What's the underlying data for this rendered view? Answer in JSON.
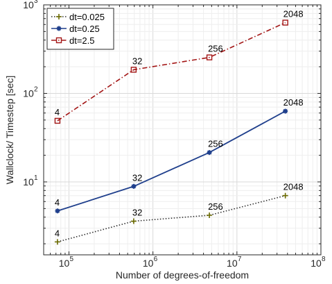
{
  "chart_data": {
    "type": "line",
    "title": "",
    "xlabel": "Number of degrees-of-freedom",
    "ylabel": "Wallclock/ Timestep [sec]",
    "xscale": "log",
    "yscale": "log",
    "xlim": [
      50000,
      100000000
    ],
    "ylim": [
      1.5,
      1000
    ],
    "grid": true,
    "legend_position": "top-left",
    "x_ticks": [
      {
        "value": 100000,
        "base": "10",
        "exp": "5"
      },
      {
        "value": 1000000,
        "base": "10",
        "exp": "6"
      },
      {
        "value": 10000000,
        "base": "10",
        "exp": "7"
      },
      {
        "value": 100000000,
        "base": "10",
        "exp": "8"
      }
    ],
    "y_ticks": [
      {
        "value": 10,
        "base": "10",
        "exp": "1"
      },
      {
        "value": 100,
        "base": "10",
        "exp": "2"
      },
      {
        "value": 1000,
        "base": "10",
        "exp": "3"
      }
    ],
    "series": [
      {
        "name": "dt=0.025",
        "color": "#2b2b2b",
        "marker_color": "#6b6b00",
        "line_style": "dotted",
        "marker": "plus",
        "x": [
          73000,
          590000,
          4700000,
          37700000
        ],
        "y": [
          2.1,
          3.6,
          4.2,
          7.0
        ],
        "labels": [
          "4",
          "32",
          "256",
          "2048"
        ]
      },
      {
        "name": "dt=0.25",
        "color": "#1f3f8c",
        "marker_color": "#1f3f8c",
        "line_style": "solid",
        "marker": "star",
        "x": [
          73000,
          590000,
          4700000,
          37700000
        ],
        "y": [
          4.7,
          8.9,
          21.5,
          63
        ],
        "labels": [
          "4",
          "32",
          "256",
          "2048"
        ]
      },
      {
        "name": "dt=2.5",
        "color": "#a31515",
        "marker_color": "#a31515",
        "line_style": "dashdot",
        "marker": "square",
        "x": [
          73000,
          590000,
          4700000,
          37700000
        ],
        "y": [
          49,
          185,
          255,
          630
        ],
        "labels": [
          "4",
          "32",
          "256",
          "2048"
        ]
      }
    ]
  }
}
